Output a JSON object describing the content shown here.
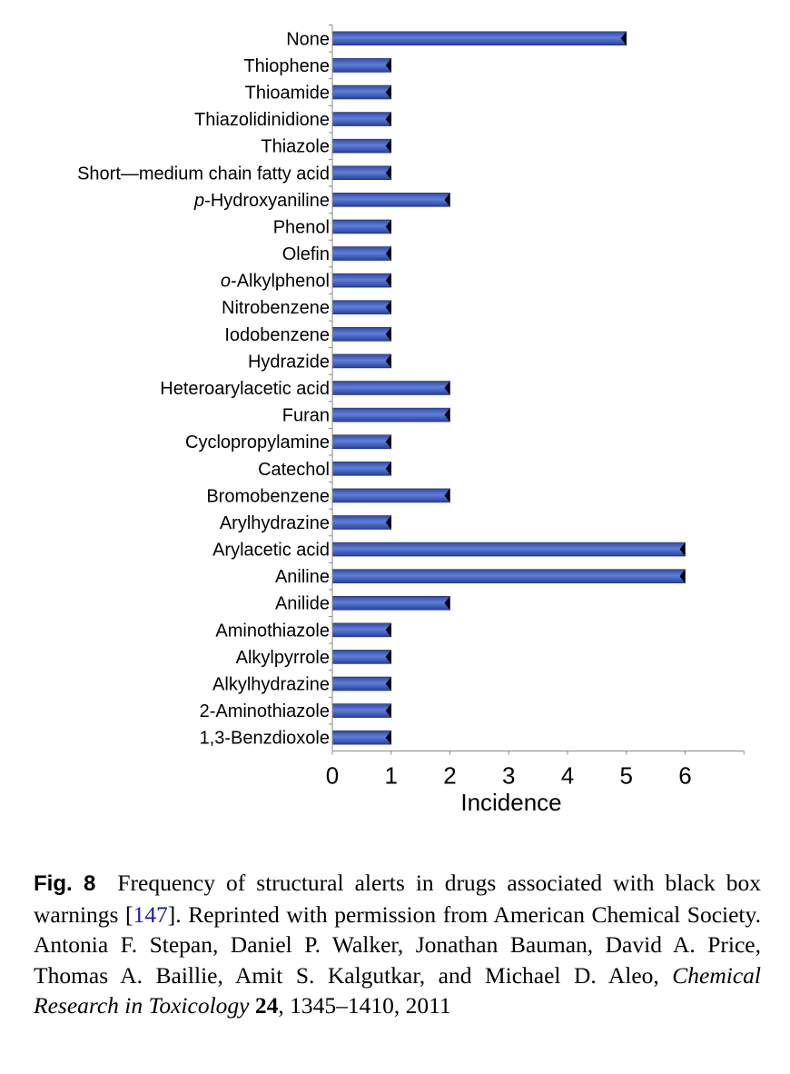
{
  "chart_data": {
    "type": "bar",
    "orientation": "horizontal",
    "categories": [
      "None",
      "Thiophene",
      "Thioamide",
      "Thiazolidinidione",
      "Thiazole",
      "Short—medium chain fatty acid",
      "p-Hydroxyaniline",
      "Phenol",
      "Olefin",
      "o-Alkylphenol",
      "Nitrobenzene",
      "Iodobenzene",
      "Hydrazide",
      "Heteroarylacetic acid",
      "Furan",
      "Cyclopropylamine",
      "Catechol",
      "Bromobenzene",
      "Arylhydrazine",
      "Arylacetic acid",
      "Aniline",
      "Anilide",
      "Aminothiazole",
      "Alkylpyrrole",
      "Alkylhydrazine",
      "2-Aminothiazole",
      "1,3-Benzdioxole"
    ],
    "values": [
      5,
      1,
      1,
      1,
      1,
      1,
      2,
      1,
      1,
      1,
      1,
      1,
      1,
      2,
      2,
      1,
      1,
      2,
      1,
      6,
      6,
      2,
      1,
      1,
      1,
      1,
      1
    ],
    "xlabel": "Incidence",
    "xticks": [
      "0",
      "1",
      "2",
      "3",
      "4",
      "5",
      "6"
    ],
    "xlim": [
      0,
      7
    ],
    "grid": false,
    "legend": "none",
    "bar_color": "#4a66c4"
  },
  "caption": {
    "fig_label": "Fig. 8",
    "text_before_ref": "Frequency of structural alerts in drugs associated with black box warnings [",
    "ref": "147",
    "text_after_ref": "]. Reprinted with permission from American Chemical Society. Antonia F. Stepan, Daniel P. Walker, Jonathan Bauman, David A. Price, Thomas A. Baillie, Amit S. Kalgutkar, and Michael D. Aleo, ",
    "journal": "Chemical Research in Toxicology",
    "volume": "24",
    "pages_year": ", 1345–1410, 2011"
  }
}
